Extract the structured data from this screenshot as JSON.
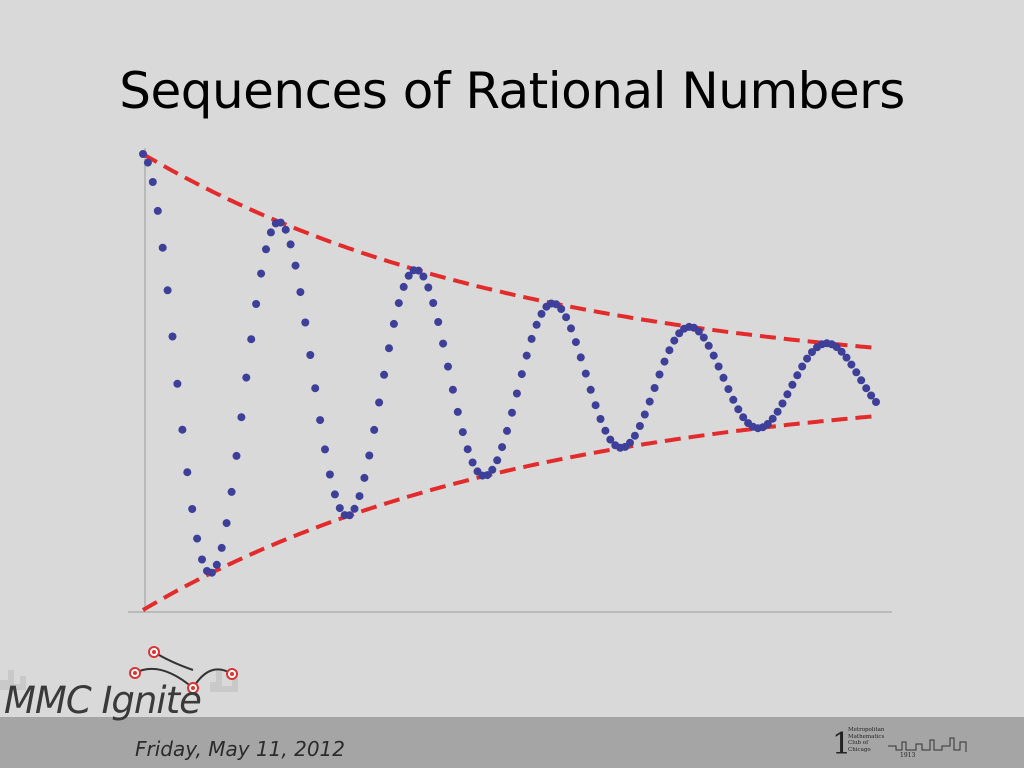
{
  "slide": {
    "title": "Sequences of Rational Numbers"
  },
  "footer": {
    "date": "Friday, May 11, 2012",
    "brand": "MMC Ignite",
    "club_lines": [
      "Metropolitan",
      "Mathematics",
      "Club of",
      "Chicago"
    ],
    "club_year": "1913",
    "club_numeral": "1"
  },
  "colors": {
    "background": "#d9d9d9",
    "points": "#3d3f99",
    "envelope": "#e32b2b",
    "axis": "#9a9a9a",
    "footer_bar": "#a5a5a5"
  },
  "chart_data": {
    "type": "scatter",
    "title": "",
    "xlabel": "",
    "ylabel": "",
    "grid": false,
    "legend": "none",
    "xlim": [
      0,
      1
    ],
    "ylim": [
      -1,
      1
    ],
    "series": [
      {
        "style": "points",
        "description_of_points": "damped oscillation converging to 0",
        "amplitude": 1,
        "decay_rate": 1.9,
        "cycles": 5.35,
        "n_points": 150
      },
      {
        "style": "dashed-envelope-upper",
        "amplitude": 1,
        "decay_rate": 1.9
      },
      {
        "style": "dashed-envelope-lower",
        "amplitude": -1,
        "decay_rate": 1.9
      }
    ]
  }
}
